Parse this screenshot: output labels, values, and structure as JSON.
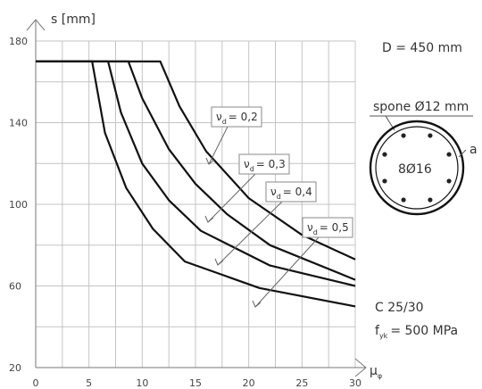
{
  "chart_data": {
    "type": "line",
    "xlabel": "μ",
    "xlabel_sub": "φ",
    "ylabel": "s [mm]",
    "xlim": [
      0,
      30
    ],
    "ylim": [
      20,
      180
    ],
    "xticks": [
      0,
      5,
      10,
      15,
      20,
      25,
      30
    ],
    "yticks": [
      20,
      60,
      100,
      140,
      180
    ],
    "grid": true,
    "series": [
      {
        "name": "νd = 0,2",
        "label_sym": "ν",
        "label_sub": "d",
        "label_val": "= 0,2",
        "x": [
          0,
          11.7,
          13.5,
          16,
          20,
          25,
          30
        ],
        "y": [
          170,
          170,
          148,
          126,
          103,
          85,
          73
        ]
      },
      {
        "name": "νd = 0,3",
        "label_sym": "ν",
        "label_sub": "d",
        "label_val": "= 0,3",
        "x": [
          0,
          8.7,
          10,
          12.5,
          15,
          18,
          22,
          30
        ],
        "y": [
          170,
          170,
          152,
          127,
          110,
          95,
          80,
          63
        ]
      },
      {
        "name": "νd = 0,4",
        "label_sym": "ν",
        "label_sub": "d",
        "label_val": "= 0,4",
        "x": [
          0,
          6.8,
          8,
          10,
          12.5,
          15.5,
          22,
          30
        ],
        "y": [
          170,
          170,
          145,
          120,
          102,
          87,
          70,
          60
        ]
      },
      {
        "name": "νd = 0,5",
        "label_sym": "ν",
        "label_sub": "d",
        "label_val": "= 0,5",
        "x": [
          0,
          5.3,
          6.5,
          8.5,
          11,
          14,
          21,
          30
        ],
        "y": [
          170,
          170,
          135,
          108,
          88,
          72,
          59,
          50
        ]
      }
    ],
    "annotations": {
      "diameter": "D = 450 mm",
      "stirrups": "spone Ø12 mm",
      "bars": "8Ø16",
      "cover": "a",
      "concrete": "C 25/30",
      "steel_sym": "f",
      "steel_sub": "yk",
      "steel_val": "= 500 MPa"
    }
  }
}
